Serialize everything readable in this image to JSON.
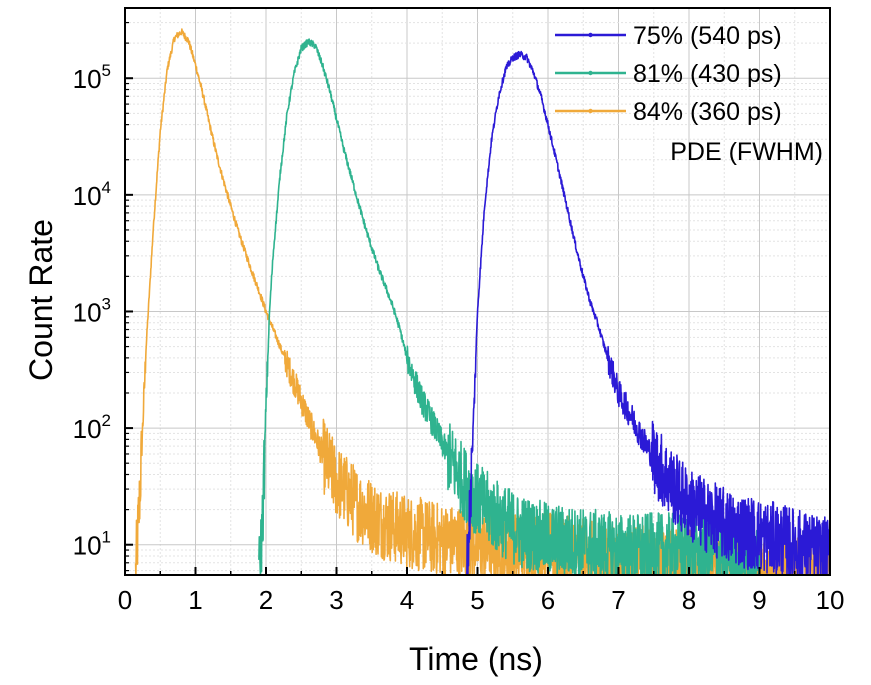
{
  "chart_data": {
    "type": "line",
    "title": "",
    "xlabel": "Time (ns)",
    "ylabel": "Count Rate",
    "xlim": [
      0,
      10
    ],
    "ylim": [
      5.5,
      400000
    ],
    "yscale": "log",
    "grid": true,
    "legend_position": "top-right",
    "legend_title": "PDE (FWHM)",
    "x_ticks": [
      "0",
      "1",
      "2",
      "3",
      "4",
      "5",
      "6",
      "7",
      "8",
      "9",
      "10"
    ],
    "y_ticks": [
      {
        "base": "10",
        "exp": "1",
        "value": 10
      },
      {
        "base": "10",
        "exp": "2",
        "value": 100
      },
      {
        "base": "10",
        "exp": "3",
        "value": 1000
      },
      {
        "base": "10",
        "exp": "4",
        "value": 10000
      },
      {
        "base": "10",
        "exp": "5",
        "value": 100000
      }
    ],
    "series": [
      {
        "name": "75% (540 ps)",
        "color": "#2b1ad6",
        "points": [
          [
            4.85,
            5.5
          ],
          [
            4.9,
            25
          ],
          [
            4.95,
            150
          ],
          [
            5.0,
            1000
          ],
          [
            5.1,
            8000
          ],
          [
            5.2,
            30000
          ],
          [
            5.3,
            70000
          ],
          [
            5.4,
            120000
          ],
          [
            5.5,
            150000
          ],
          [
            5.6,
            160000
          ],
          [
            5.7,
            150000
          ],
          [
            5.8,
            110000
          ],
          [
            5.9,
            70000
          ],
          [
            6.0,
            40000
          ],
          [
            6.1,
            22000
          ],
          [
            6.2,
            12000
          ],
          [
            6.3,
            6500
          ],
          [
            6.4,
            3500
          ],
          [
            6.5,
            2000
          ],
          [
            6.6,
            1200
          ],
          [
            6.7,
            800
          ],
          [
            6.8,
            500
          ],
          [
            6.9,
            320
          ],
          [
            7.0,
            200
          ],
          [
            7.2,
            120
          ],
          [
            7.4,
            70
          ],
          [
            7.6,
            45
          ],
          [
            7.8,
            30
          ],
          [
            8.0,
            22
          ],
          [
            8.3,
            17
          ],
          [
            8.6,
            14
          ],
          [
            9.0,
            12
          ],
          [
            9.5,
            10
          ],
          [
            10.0,
            8
          ]
        ]
      },
      {
        "name": "81% (430 ps)",
        "color": "#2fb38f",
        "points": [
          [
            1.9,
            5.5
          ],
          [
            1.95,
            15
          ],
          [
            2.0,
            150
          ],
          [
            2.05,
            1000
          ],
          [
            2.1,
            3000
          ],
          [
            2.2,
            15000
          ],
          [
            2.3,
            50000
          ],
          [
            2.4,
            110000
          ],
          [
            2.5,
            180000
          ],
          [
            2.6,
            205000
          ],
          [
            2.7,
            190000
          ],
          [
            2.8,
            130000
          ],
          [
            2.9,
            80000
          ],
          [
            3.0,
            45000
          ],
          [
            3.1,
            25000
          ],
          [
            3.2,
            15000
          ],
          [
            3.3,
            9000
          ],
          [
            3.4,
            5500
          ],
          [
            3.5,
            3500
          ],
          [
            3.6,
            2300
          ],
          [
            3.7,
            1600
          ],
          [
            3.8,
            1100
          ],
          [
            3.9,
            700
          ],
          [
            4.0,
            400
          ],
          [
            4.2,
            180
          ],
          [
            4.4,
            100
          ],
          [
            4.6,
            55
          ],
          [
            4.8,
            35
          ],
          [
            5.0,
            24
          ],
          [
            5.3,
            17
          ],
          [
            5.6,
            13
          ],
          [
            6.0,
            11
          ],
          [
            6.5,
            10
          ],
          [
            7.0,
            9
          ],
          [
            7.5,
            9
          ],
          [
            8.0,
            9
          ],
          [
            8.5,
            8
          ],
          [
            9.0,
            7
          ]
        ]
      },
      {
        "name": "84% (360 ps)",
        "color": "#f0a93a",
        "points": [
          [
            0.15,
            5.5
          ],
          [
            0.2,
            20
          ],
          [
            0.25,
            100
          ],
          [
            0.3,
            500
          ],
          [
            0.4,
            5000
          ],
          [
            0.5,
            35000
          ],
          [
            0.6,
            120000
          ],
          [
            0.7,
            220000
          ],
          [
            0.8,
            250000
          ],
          [
            0.9,
            210000
          ],
          [
            1.0,
            130000
          ],
          [
            1.1,
            75000
          ],
          [
            1.2,
            40000
          ],
          [
            1.3,
            22000
          ],
          [
            1.4,
            13000
          ],
          [
            1.5,
            8000
          ],
          [
            1.6,
            5000
          ],
          [
            1.7,
            3300
          ],
          [
            1.8,
            2200
          ],
          [
            1.9,
            1500
          ],
          [
            2.0,
            1000
          ],
          [
            2.2,
            500
          ],
          [
            2.4,
            250
          ],
          [
            2.6,
            120
          ],
          [
            2.8,
            60
          ],
          [
            3.0,
            35
          ],
          [
            3.3,
            22
          ],
          [
            3.6,
            16
          ],
          [
            4.0,
            13
          ],
          [
            4.5,
            11
          ],
          [
            5.0,
            10
          ],
          [
            5.5,
            9
          ],
          [
            6.0,
            9
          ],
          [
            6.5,
            8
          ],
          [
            7.0,
            7
          ],
          [
            7.5,
            7
          ],
          [
            8.0,
            6.5
          ],
          [
            8.5,
            6.5
          ],
          [
            9.0,
            6
          ],
          [
            9.5,
            6
          ],
          [
            10.0,
            6
          ]
        ]
      }
    ]
  }
}
